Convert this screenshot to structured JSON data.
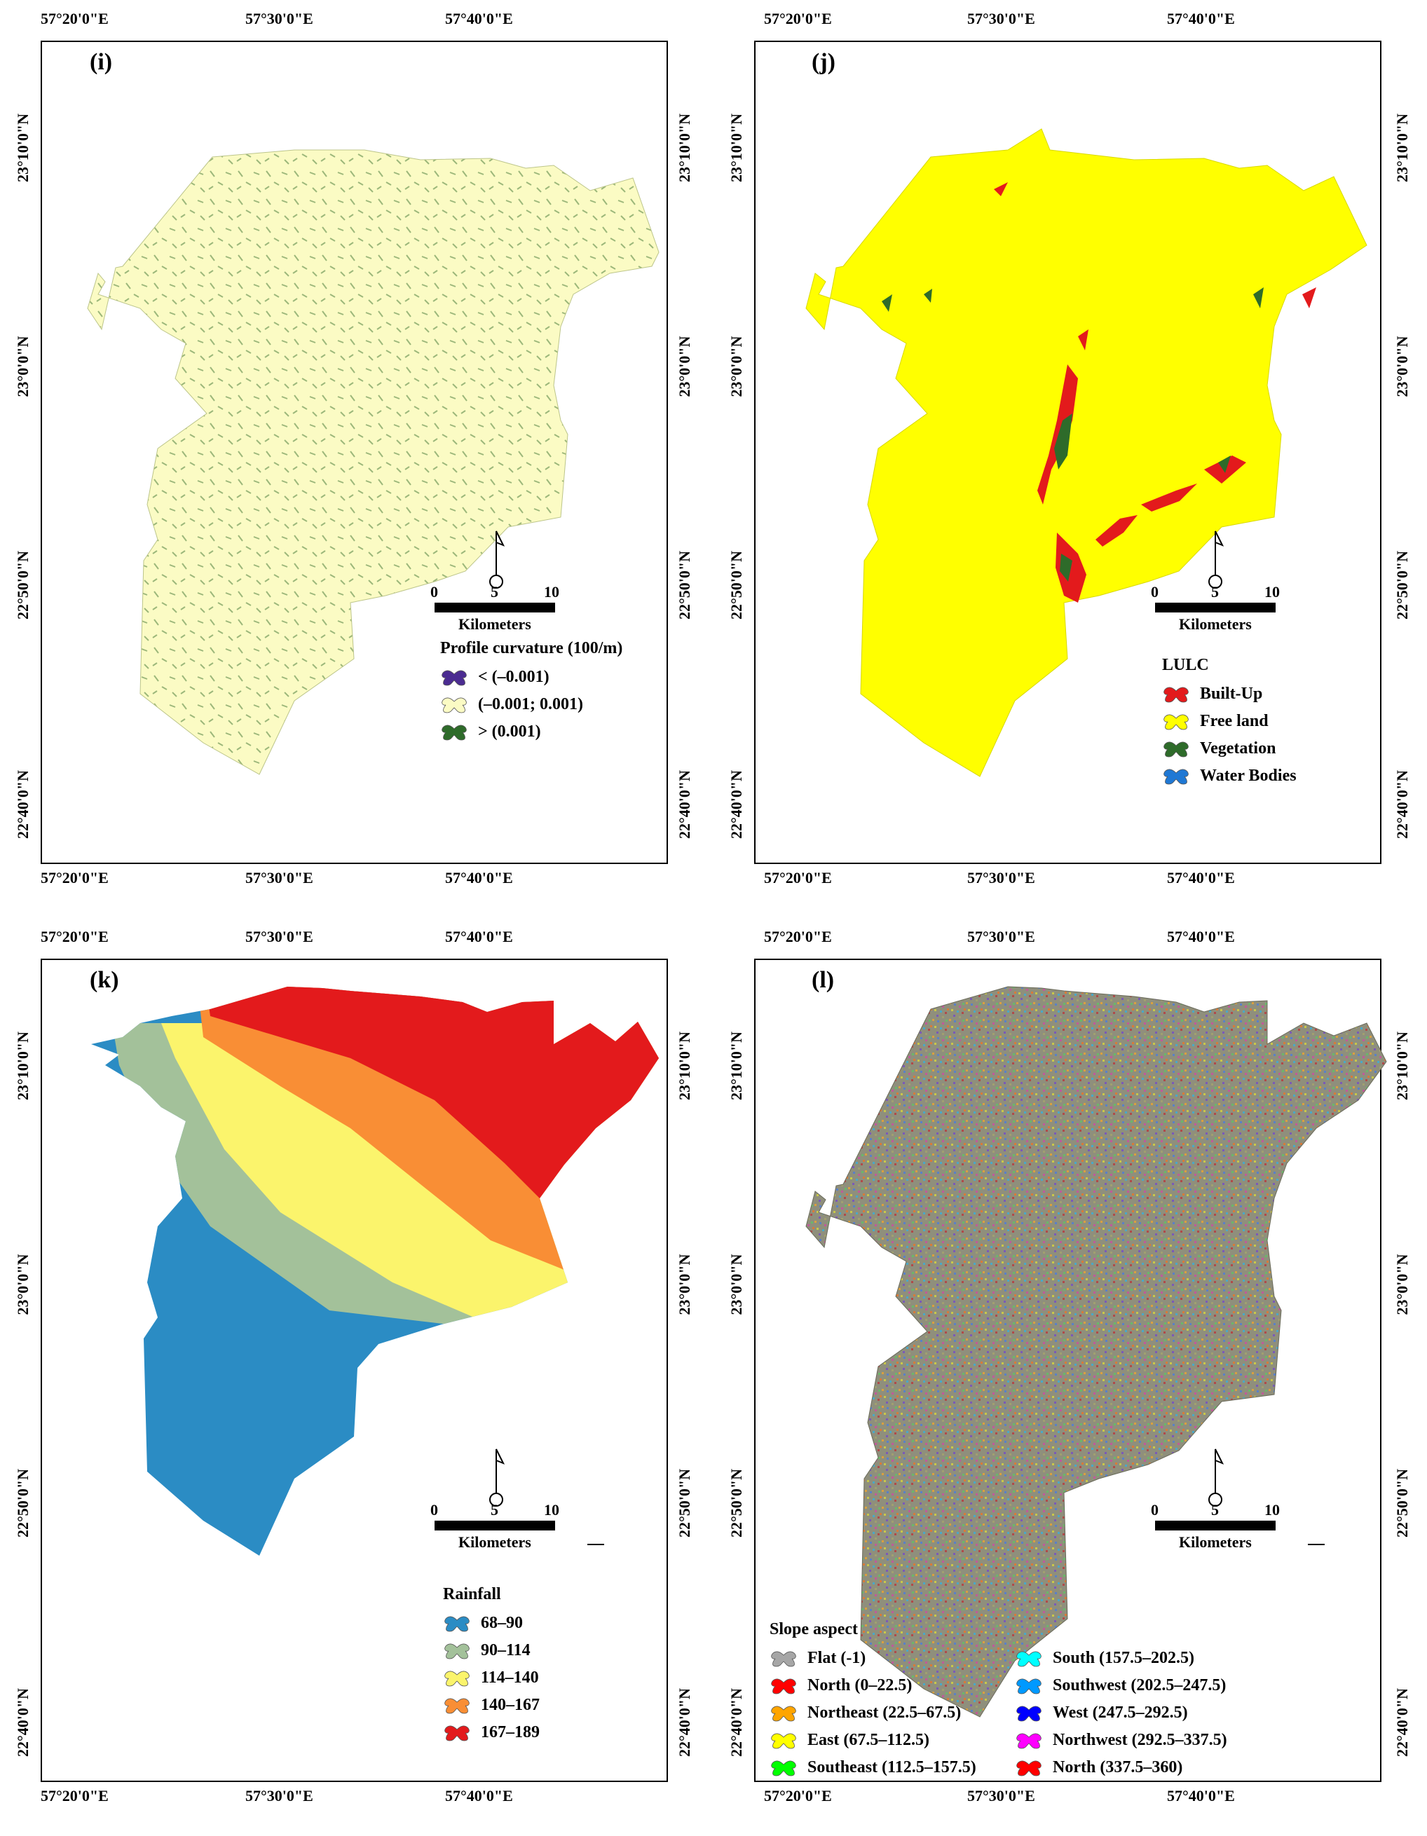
{
  "axes": {
    "lon_ticks": [
      "57°20'0\"E",
      "57°30'0\"E",
      "57°40'0\"E"
    ],
    "lat_ticks": [
      "23°10'0\"N",
      "23°0'0\"N",
      "22°50'0\"N",
      "22°40'0\"N"
    ]
  },
  "scalebar": {
    "ticks": [
      "0",
      "5",
      "10"
    ],
    "unit": "Kilometers"
  },
  "panels": [
    {
      "id": "i",
      "label": "(i)",
      "legend_title": "Profile curvature (100/m)",
      "legend": [
        {
          "label": "< (–0.001)",
          "color": "#4b2c91"
        },
        {
          "label": "(–0.001; 0.001)",
          "color": "#fbfbc4"
        },
        {
          "label": "> (0.001)",
          "color": "#2e6b2a"
        }
      ],
      "fill": "#fbfbc4",
      "texture": "#4e7f3d"
    },
    {
      "id": "j",
      "label": "(j)",
      "legend_title": "LULC",
      "legend": [
        {
          "label": "Built-Up",
          "color": "#e31a1c"
        },
        {
          "label": "Free land",
          "color": "#ffff00"
        },
        {
          "label": "Vegetation",
          "color": "#2e6b2a"
        },
        {
          "label": "Water Bodies",
          "color": "#1f78d4"
        }
      ],
      "fill": "#ffff00"
    },
    {
      "id": "k",
      "label": "(k)",
      "legend_title": "Rainfall",
      "legend": [
        {
          "label": "68–90",
          "color": "#2b8cc4"
        },
        {
          "label": "90–114",
          "color": "#a3c19a"
        },
        {
          "label": "114–140",
          "color": "#fbf46c"
        },
        {
          "label": "140–167",
          "color": "#f98e35"
        },
        {
          "label": "167–189",
          "color": "#e31a1c"
        }
      ]
    },
    {
      "id": "l",
      "label": "(l)",
      "legend_title": "Slope aspect",
      "legend": [
        {
          "label": "Flat (-1)",
          "color": "#a6a6a6"
        },
        {
          "label": "North (0–22.5)",
          "color": "#ff0000"
        },
        {
          "label": "Northeast (22.5–67.5)",
          "color": "#ffa500"
        },
        {
          "label": "East (67.5–112.5)",
          "color": "#ffff00"
        },
        {
          "label": "Southeast (112.5–157.5)",
          "color": "#00ff00"
        },
        {
          "label": "South (157.5–202.5)",
          "color": "#00ffff"
        },
        {
          "label": "Southwest (202.5–247.5)",
          "color": "#0099ff"
        },
        {
          "label": "West (247.5–292.5)",
          "color": "#0000ff"
        },
        {
          "label": "Northwest (292.5–337.5)",
          "color": "#ff00ff"
        },
        {
          "label": "North (337.5–360)",
          "color": "#ff0000"
        }
      ],
      "fill": "#8c8c7a"
    }
  ]
}
